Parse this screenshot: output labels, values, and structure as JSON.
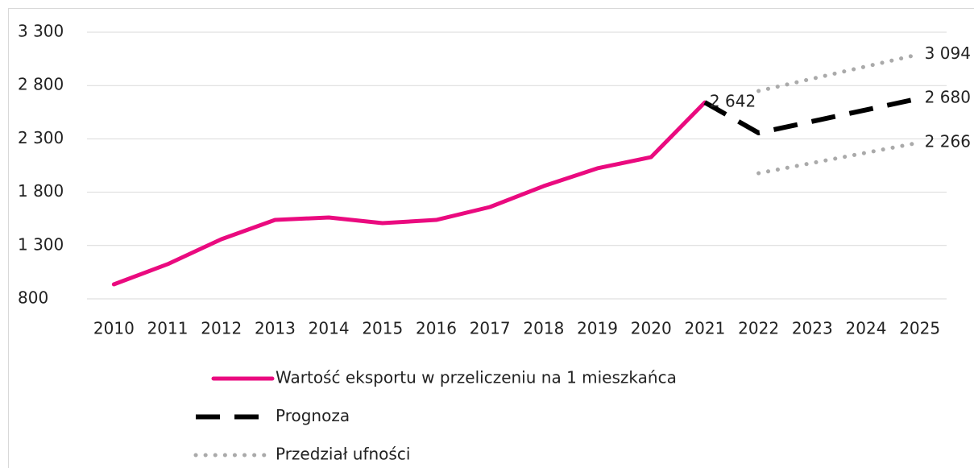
{
  "chart_data": {
    "type": "line",
    "categories": [
      "2010",
      "2011",
      "2012",
      "2013",
      "2014",
      "2015",
      "2016",
      "2017",
      "2018",
      "2019",
      "2020",
      "2021",
      "2022",
      "2023",
      "2024",
      "2025"
    ],
    "series": [
      {
        "name": "Wartość eksportu w przeliczeniu na 1 mieszkańca",
        "color": "#ea0a7f",
        "style": "solid",
        "values": [
          936,
          1125,
          1359,
          1540,
          1563,
          1510,
          1540,
          1661,
          1857,
          2024,
          2129,
          2642,
          null,
          null,
          null,
          null
        ]
      },
      {
        "name": "Prognoza",
        "color": "#000000",
        "style": "dashed",
        "values": [
          null,
          null,
          null,
          null,
          null,
          null,
          null,
          null,
          null,
          null,
          null,
          2642,
          2356,
          2464,
          2572,
          2680
        ],
        "value_labels": [
          null,
          null,
          null,
          null,
          null,
          null,
          null,
          null,
          null,
          null,
          null,
          "2 642",
          null,
          null,
          null,
          "2 680"
        ]
      },
      {
        "name": "Przedział ufności",
        "color": "#aaaaaa",
        "style": "dotted",
        "values": [
          null,
          null,
          null,
          null,
          null,
          null,
          null,
          null,
          null,
          null,
          null,
          null,
          2749,
          2864,
          2979,
          3094
        ],
        "value_labels": [
          null,
          null,
          null,
          null,
          null,
          null,
          null,
          null,
          null,
          null,
          null,
          null,
          null,
          null,
          null,
          "3 094"
        ]
      },
      {
        "name": "Przedział ufności",
        "color": "#aaaaaa",
        "style": "dotted",
        "values": [
          null,
          null,
          null,
          null,
          null,
          null,
          null,
          null,
          null,
          null,
          null,
          null,
          1978,
          2074,
          2170,
          2266
        ],
        "value_labels": [
          null,
          null,
          null,
          null,
          null,
          null,
          null,
          null,
          null,
          null,
          null,
          null,
          null,
          null,
          null,
          "2 266"
        ]
      }
    ],
    "ylim": [
      800,
      3300
    ],
    "yticks": [
      800,
      {
        "value": 1300,
        "label": "1 300"
      },
      {
        "value": 1800,
        "label": "1 800"
      },
      {
        "value": 2300,
        "label": "2 300"
      },
      {
        "value": 2800,
        "label": "2 800"
      },
      {
        "value": 3300,
        "label": "3 300"
      }
    ],
    "grid": true,
    "legend": "bottom"
  }
}
